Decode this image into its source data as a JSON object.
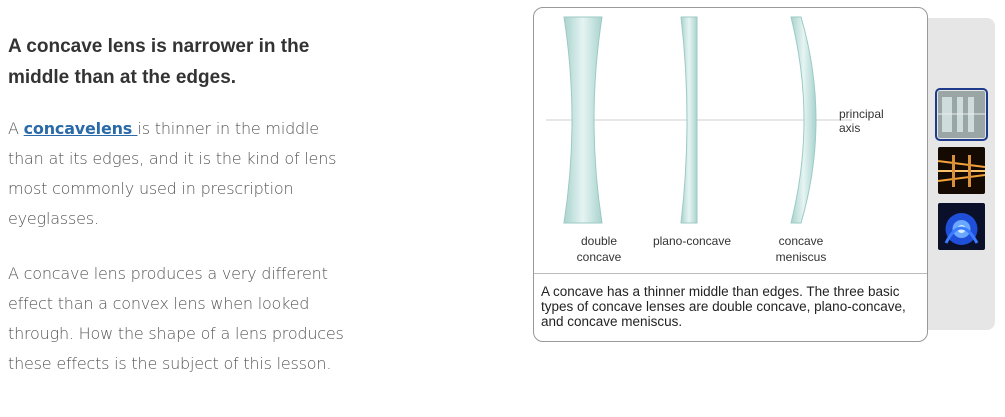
{
  "article": {
    "heading": "A concave lens is narrower in the middle than at the edges.",
    "para1_pre": "A ",
    "para1_link": "concavelens ",
    "para1_post": "is thinner in the middle than at its edges, and it is the kind of lens most commonly used in prescription eyeglasses.",
    "para2": "A concave lens produces a very different effect than a convex lens when looked through. How the shape of a lens produces these effects is the subject of this lesson."
  },
  "figure": {
    "axis_label_line1": "principal",
    "axis_label_line2": "axis",
    "lens1_line1": "double",
    "lens1_line2": "concave",
    "lens2_label": "plano-concave",
    "lens3_line1": "concave",
    "lens3_line2": "meniscus",
    "caption": "A concave has a thinner middle than edges. The three basic types of concave lenses are double concave, plano-concave, and concave meniscus.",
    "lens_color": "#bfe0dc"
  },
  "gallery": {
    "thumbnails": [
      {
        "name": "concave-lenses-thumbnail",
        "selected": true
      },
      {
        "name": "light-rays-thumbnail",
        "selected": false
      },
      {
        "name": "blue-glow-thumbnail",
        "selected": false
      }
    ]
  }
}
